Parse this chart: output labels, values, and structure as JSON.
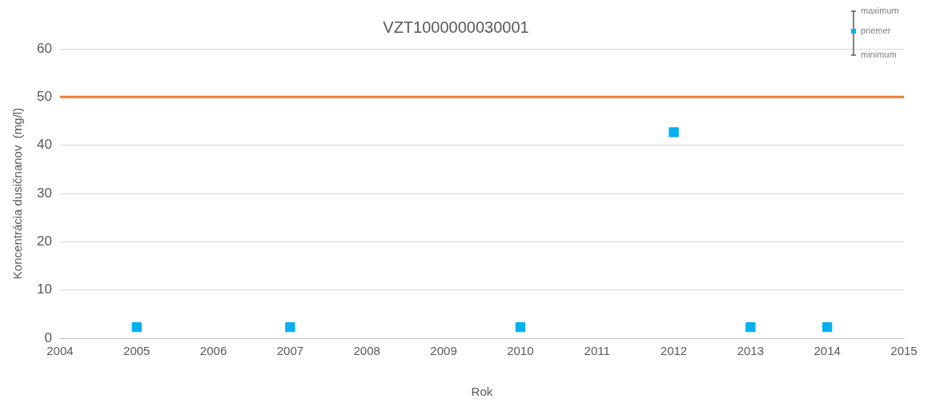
{
  "chart_data": {
    "type": "scatter",
    "title": "VZT1000000030001",
    "xlabel": "Rok",
    "ylabel": "Koncentrácia dusičnanov  (mg/l)",
    "x": [
      2005,
      2007,
      2010,
      2012,
      2013,
      2014
    ],
    "series": [
      {
        "name": "priemer",
        "color": "#00b0f0",
        "values": [
          2.3,
          2.3,
          2.3,
          42.7,
          2.3,
          2.3
        ]
      }
    ],
    "xlim": [
      2004,
      2015
    ],
    "xticks": [
      2004,
      2005,
      2006,
      2007,
      2008,
      2009,
      2010,
      2011,
      2012,
      2013,
      2014,
      2015
    ],
    "ylim": [
      0,
      60
    ],
    "yticks": [
      0,
      10,
      20,
      30,
      40,
      50,
      60
    ],
    "ref_lines": [
      {
        "axis": "y",
        "value": 50,
        "color": "#ed7d31"
      }
    ],
    "annotations": [
      "maximum",
      "minimum"
    ],
    "grid": "y",
    "legend": "top right",
    "marker": "square"
  }
}
